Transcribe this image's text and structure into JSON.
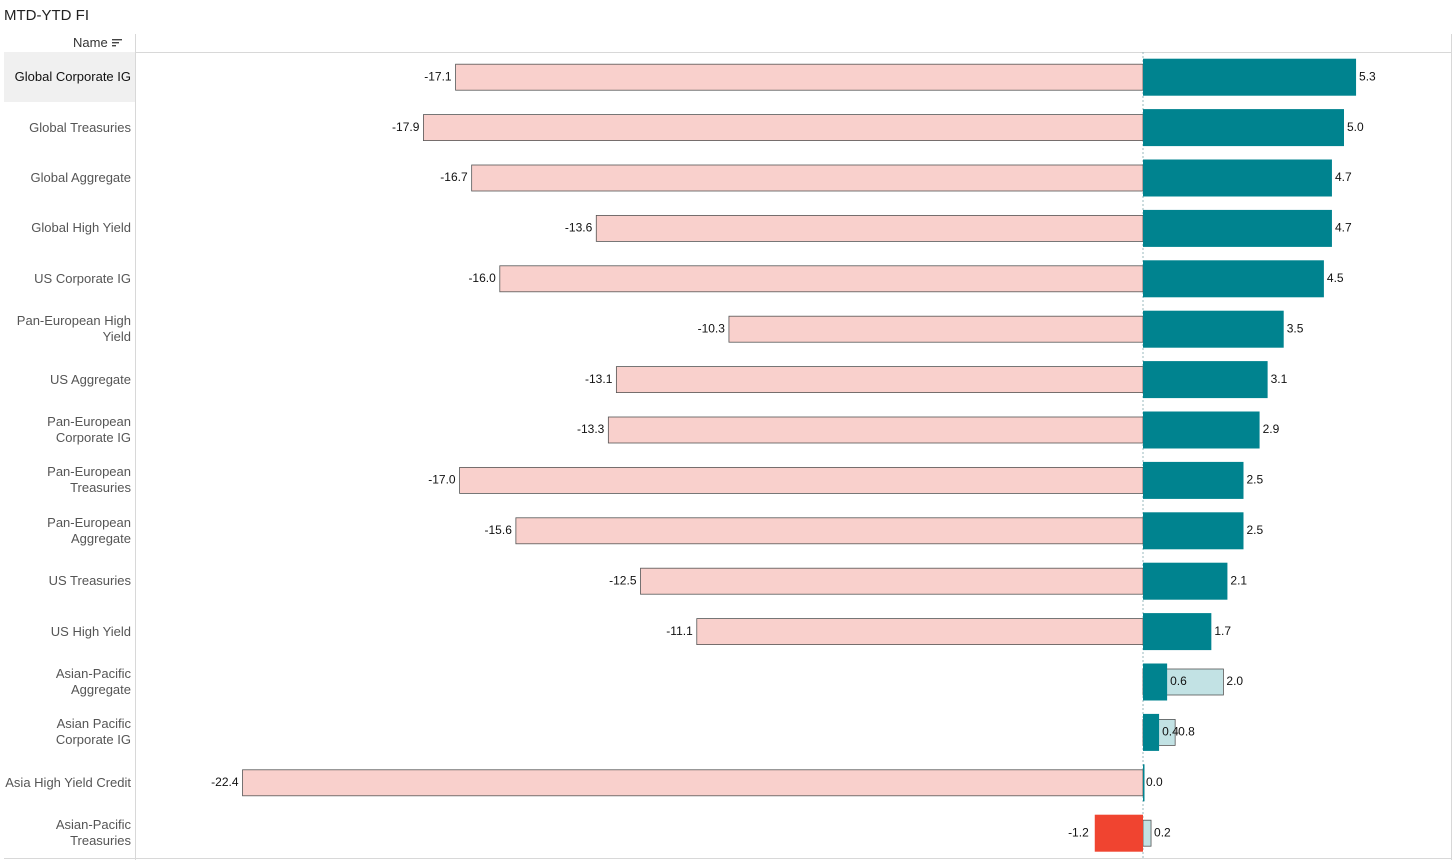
{
  "title": "MTD-YTD FI",
  "header": {
    "name_label": "Name",
    "sort_icon": "sort-descending-icon"
  },
  "colors": {
    "ytd_negative": "#f9d0cc",
    "ytd_positive": "#c2e2e4",
    "mtd_positive": "#00838f",
    "mtd_negative": "#f04430",
    "border": "#555555",
    "zero_line": "#9ab8bd"
  },
  "chart_data": {
    "type": "bar",
    "orientation": "horizontal",
    "categories": [
      "Global Corporate IG",
      "Global Treasuries",
      "Global Aggregate",
      "Global High Yield",
      "US Corporate IG",
      "Pan-European High Yield",
      "US Aggregate",
      "Pan-European Corporate IG",
      "Pan-European Treasuries",
      "Pan-European Aggregate",
      "US Treasuries",
      "US High Yield",
      "Asian-Pacific Aggregate",
      "Asian Pacific Corporate IG",
      "Asia High Yield Credit",
      "Asian-Pacific Treasuries"
    ],
    "series": [
      {
        "values": [
          -17.1,
          -17.9,
          -16.7,
          -13.6,
          -16.0,
          -10.3,
          -13.1,
          -13.3,
          -17.0,
          -15.6,
          -12.5,
          -11.1,
          2.0,
          0.8,
          -22.4,
          0.2
        ]
      },
      {
        "values": [
          5.3,
          5.0,
          4.7,
          4.7,
          4.5,
          3.5,
          3.1,
          2.9,
          2.5,
          2.5,
          2.1,
          1.7,
          0.6,
          0.4,
          0.0,
          -1.2
        ]
      }
    ],
    "series_labels": [
      [
        "-17.1",
        "-17.9",
        "-16.7",
        "-13.6",
        "-16.0",
        "-10.3",
        "-13.1",
        "-13.3",
        "-17.0",
        "-15.6",
        "-12.5",
        "-11.1",
        "2.0",
        "0.8",
        "-22.4",
        "0.2"
      ],
      [
        "5.3",
        "5.0",
        "4.7",
        "4.7",
        "4.5",
        "3.5",
        "3.1",
        "2.9",
        "2.5",
        "2.5",
        "2.1",
        "1.7",
        "0.6",
        "0.4",
        "0.0",
        "-1.2"
      ]
    ],
    "highlighted_row": "Global Corporate IG",
    "xlim": [
      -22.6,
      7.5
    ],
    "grid": false,
    "legend": "none"
  }
}
